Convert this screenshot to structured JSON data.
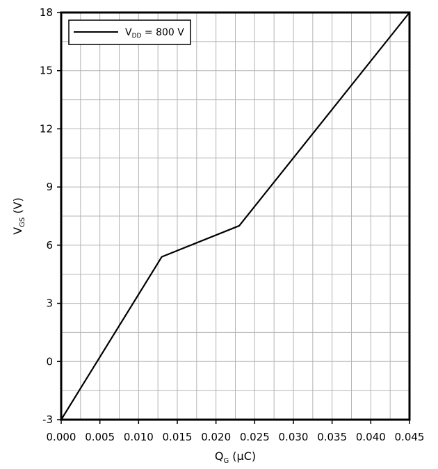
{
  "chart_data": {
    "type": "line",
    "xlabel": {
      "main": "Q",
      "sub": "G",
      "unit": " (μC)"
    },
    "ylabel": {
      "main": "V",
      "sub": "GS",
      "unit": " (V)"
    },
    "xlim": [
      0,
      0.045
    ],
    "ylim": [
      -3,
      18
    ],
    "x_ticks": [
      "0.000",
      "0.005",
      "0.010",
      "0.015",
      "0.020",
      "0.025",
      "0.030",
      "0.035",
      "0.040",
      "0.045"
    ],
    "y_ticks": [
      "-3",
      "0",
      "3",
      "6",
      "9",
      "12",
      "15",
      "18"
    ],
    "grid": true,
    "legend_position": "top-left",
    "series": [
      {
        "name": {
          "main": "V",
          "sub": "DD",
          "rest": " = 800 V"
        },
        "color": "#000000",
        "x": [
          0.0,
          0.013,
          0.023,
          0.045
        ],
        "y": [
          -3.0,
          5.4,
          7.0,
          18.0
        ]
      }
    ]
  }
}
